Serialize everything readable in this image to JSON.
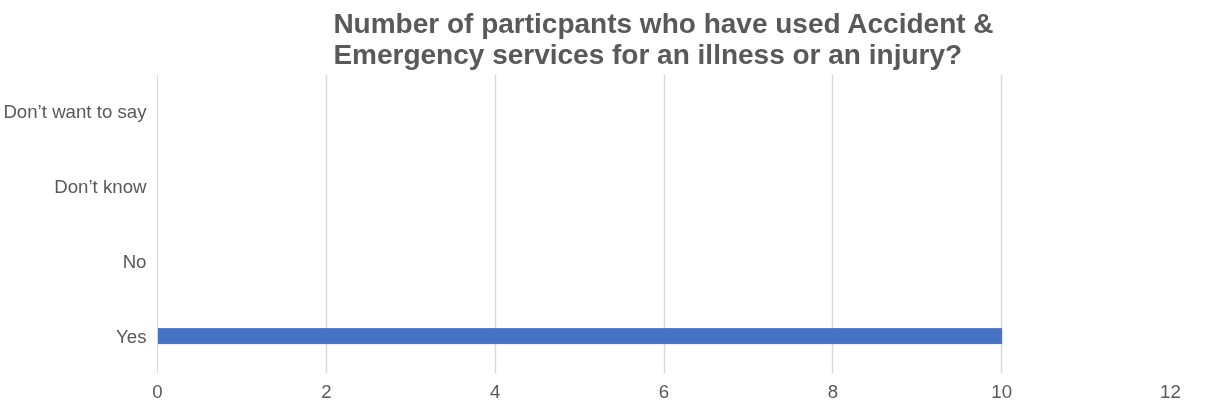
{
  "chart_data": {
    "type": "bar",
    "orientation": "horizontal",
    "title": "Number of particpants who have used Accident & Emergency services for an illness or an injury?",
    "categories": [
      "Don’t want to say",
      "Don’t know",
      "No",
      "Yes"
    ],
    "values": [
      0,
      0,
      0,
      10
    ],
    "color": "#4472c4",
    "xlim": [
      0,
      12
    ],
    "xticks": [
      0,
      2,
      4,
      6,
      8,
      10,
      12
    ],
    "grid": "x"
  }
}
